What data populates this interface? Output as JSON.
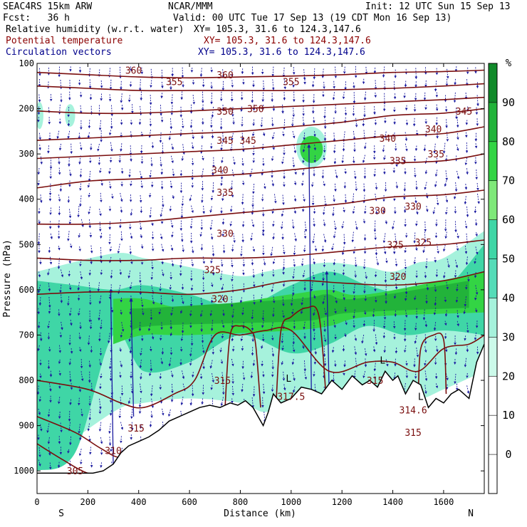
{
  "header": {
    "model": "SEAC4RS 15km ARW",
    "org": "NCAR/MMM",
    "init": "Init: 12 UTC Sun 15 Sep 13",
    "fcst": "Fcst:   36 h",
    "valid": "Valid: 00 UTC Tue 17 Sep 13 (19 CDT Mon 16 Sep 13)",
    "fields": [
      {
        "name": "Relative humidity (w.r.t. water)",
        "xy": "XY= 105.3, 31.6 to 124.3,147.6"
      },
      {
        "name": "Potential temperature",
        "xy": "XY= 105.3, 31.6 to 124.3,147.6"
      },
      {
        "name": "Circulation vectors",
        "xy": "XY= 105.3, 31.6 to 124.3,147.6"
      }
    ]
  },
  "chart_data": {
    "type": "cross-section",
    "xlabel": "Distance (km)",
    "ylabel": "Pressure (hPa)",
    "xlim": [
      0,
      1760
    ],
    "ylim": [
      1050,
      100
    ],
    "x_ticks": [
      0,
      200,
      400,
      600,
      800,
      1000,
      1200,
      1400,
      1600
    ],
    "y_ticks": [
      100,
      200,
      300,
      400,
      500,
      600,
      700,
      800,
      900,
      1000
    ],
    "end_labels": {
      "left": "S",
      "right": "N"
    },
    "colorbar": {
      "unit": "%",
      "levels": [
        0,
        10,
        20,
        30,
        40,
        50,
        60,
        70,
        80,
        90
      ],
      "colors": [
        "#ffffff",
        "#ffffff",
        "#ffffff",
        "#ccfaea",
        "#a6f2dc",
        "#55dcb8",
        "#3fd6a6",
        "#7fe879",
        "#33d444",
        "#22b33a",
        "#118a2a"
      ]
    },
    "humidity_regions": [
      {
        "level": 35,
        "x": [
          0,
          300,
          420,
          600,
          800,
          900,
          1000,
          1150,
          1300,
          1400,
          1500,
          1600,
          1760
        ],
        "p": [
          [
            990,
            560
          ],
          [
            870,
            520
          ],
          [
            850,
            530
          ],
          [
            840,
            550
          ],
          [
            850,
            570
          ],
          [
            870,
            560
          ],
          [
            840,
            550
          ],
          [
            830,
            540
          ],
          [
            820,
            550
          ],
          [
            810,
            560
          ],
          [
            840,
            540
          ],
          [
            820,
            530
          ],
          [
            780,
            470
          ]
        ]
      },
      {
        "level": 55,
        "x": [
          0,
          150,
          300,
          420,
          600,
          800,
          1000,
          1150,
          1300,
          1450,
          1600,
          1760
        ],
        "p": [
          [
            1000,
            580
          ],
          [
            960,
            590
          ],
          [
            700,
            600
          ],
          [
            780,
            590
          ],
          [
            760,
            610
          ],
          [
            700,
            640
          ],
          [
            740,
            590
          ],
          [
            720,
            560
          ],
          [
            680,
            590
          ],
          [
            700,
            610
          ],
          [
            690,
            600
          ],
          [
            700,
            500
          ]
        ]
      },
      {
        "level": 75,
        "x": [
          300,
          420,
          600,
          1000,
          1150,
          1300,
          1760
        ],
        "p": [
          [
            720,
            620
          ],
          [
            700,
            620
          ],
          [
            700,
            640
          ],
          [
            690,
            610
          ],
          [
            680,
            600
          ],
          [
            660,
            610
          ],
          [
            650,
            560
          ]
        ]
      },
      {
        "level": 85,
        "x": [
          370,
          450,
          1020,
          1140,
          1250,
          1700
        ],
        "p": [
          [
            700,
            640
          ],
          [
            680,
            640
          ],
          [
            670,
            620
          ],
          [
            660,
            610
          ],
          [
            650,
            620
          ],
          [
            640,
            580
          ]
        ]
      }
    ],
    "humidity_patches": [
      {
        "level": 35,
        "x": 1080,
        "p": 285,
        "dx": 60,
        "dp": 45
      },
      {
        "level": 75,
        "x": 1080,
        "p": 290,
        "dx": 45,
        "dp": 30
      },
      {
        "level": 35,
        "x": 10,
        "p": 215,
        "dx": 15,
        "dp": 30
      },
      {
        "level": 35,
        "x": 130,
        "p": 215,
        "dx": 20,
        "dp": 25
      }
    ],
    "theta_contours": [
      {
        "value": 305,
        "x": [
          0,
          100,
          200,
          260
        ],
        "p": [
          940,
          975,
          1005,
          1000
        ]
      },
      {
        "value": 310,
        "x": [
          0,
          150,
          250,
          330,
          400
        ],
        "p": [
          880,
          915,
          950,
          970,
          940
        ]
      },
      {
        "value": 315,
        "x": [
          0,
          200,
          330,
          420,
          540,
          620,
          700,
          800,
          900,
          1000,
          1150,
          1300,
          1400,
          1500,
          1600,
          1700,
          1760
        ],
        "p": [
          800,
          820,
          850,
          860,
          830,
          800,
          700,
          700,
          690,
          690,
          780,
          760,
          760,
          780,
          730,
          720,
          700
        ]
      },
      {
        "value": 320,
        "x": [
          0,
          200,
          400,
          600,
          800,
          1000,
          1200,
          1400,
          1600,
          1760
        ],
        "p": [
          610,
          605,
          605,
          610,
          600,
          580,
          585,
          590,
          580,
          560
        ]
      },
      {
        "value": 325,
        "x": [
          0,
          200,
          400,
          600,
          800,
          1000,
          1200,
          1400,
          1600,
          1760
        ],
        "p": [
          530,
          535,
          535,
          530,
          530,
          525,
          515,
          505,
          500,
          490
        ]
      },
      {
        "value": 330,
        "x": [
          0,
          200,
          400,
          600,
          800,
          1000,
          1200,
          1400,
          1600,
          1760
        ],
        "p": [
          455,
          455,
          450,
          440,
          430,
          420,
          410,
          395,
          390,
          380
        ]
      },
      {
        "value": 335,
        "x": [
          0,
          200,
          400,
          600,
          800,
          1000,
          1200,
          1400,
          1600,
          1760
        ],
        "p": [
          375,
          360,
          355,
          350,
          345,
          335,
          325,
          320,
          315,
          300
        ]
      },
      {
        "value": 340,
        "x": [
          0,
          200,
          400,
          600,
          800,
          1000,
          1200,
          1400,
          1600,
          1760
        ],
        "p": [
          310,
          305,
          300,
          295,
          290,
          280,
          270,
          260,
          255,
          240
        ]
      },
      {
        "value": 345,
        "x": [
          0,
          200,
          400,
          600,
          800,
          1000,
          1200,
          1400,
          1600,
          1760
        ],
        "p": [
          270,
          265,
          260,
          255,
          250,
          240,
          230,
          215,
          210,
          200
        ]
      },
      {
        "value": 350,
        "x": [
          0,
          200,
          400,
          600,
          800,
          1000,
          1200,
          1400,
          1600,
          1760
        ],
        "p": [
          205,
          210,
          210,
          205,
          200,
          195,
          190,
          185,
          180,
          175
        ]
      },
      {
        "value": 355,
        "x": [
          0,
          200,
          400,
          600,
          800,
          1000,
          1200,
          1400,
          1600,
          1760
        ],
        "p": [
          150,
          155,
          160,
          160,
          160,
          160,
          158,
          155,
          150,
          145
        ]
      },
      {
        "value": 360,
        "x": [
          0,
          200,
          400,
          600,
          800,
          1000,
          1200,
          1400,
          1600,
          1760
        ],
        "p": [
          120,
          125,
          130,
          132,
          130,
          128,
          125,
          120,
          118,
          115
        ]
      }
    ],
    "closed_contours": [
      {
        "x": [
          740,
          760,
          800,
          840,
          860,
          880
        ],
        "p": [
          860,
          700,
          680,
          690,
          720,
          860
        ]
      },
      {
        "x": [
          940,
          960,
          1000,
          1060,
          1110,
          1140
        ],
        "p": [
          860,
          690,
          660,
          640,
          660,
          860
        ]
      },
      {
        "x": [
          1500,
          1510,
          1560,
          1600,
          1610
        ],
        "p": [
          860,
          730,
          700,
          710,
          830
        ]
      }
    ],
    "theta_labels": [
      {
        "text": "360",
        "x": 380,
        "p": 115
      },
      {
        "text": "355",
        "x": 540,
        "p": 140
      },
      {
        "text": "360",
        "x": 740,
        "p": 125
      },
      {
        "text": "355",
        "x": 1000,
        "p": 140
      },
      {
        "text": "350",
        "x": 740,
        "p": 205
      },
      {
        "text": "350",
        "x": 860,
        "p": 200
      },
      {
        "text": "345",
        "x": 1680,
        "p": 205
      },
      {
        "text": "345",
        "x": 740,
        "p": 270
      },
      {
        "text": "345",
        "x": 830,
        "p": 270
      },
      {
        "text": "340",
        "x": 1380,
        "p": 265
      },
      {
        "text": "340",
        "x": 1560,
        "p": 245
      },
      {
        "text": "340",
        "x": 720,
        "p": 335
      },
      {
        "text": "335",
        "x": 1420,
        "p": 315
      },
      {
        "text": "335",
        "x": 1570,
        "p": 300
      },
      {
        "text": "335",
        "x": 740,
        "p": 385
      },
      {
        "text": "330",
        "x": 1340,
        "p": 425
      },
      {
        "text": "330",
        "x": 1480,
        "p": 415
      },
      {
        "text": "330",
        "x": 740,
        "p": 475
      },
      {
        "text": "325",
        "x": 1410,
        "p": 500
      },
      {
        "text": "325",
        "x": 1520,
        "p": 495
      },
      {
        "text": "325",
        "x": 690,
        "p": 555
      },
      {
        "text": "320",
        "x": 1420,
        "p": 570
      },
      {
        "text": "320",
        "x": 720,
        "p": 620
      },
      {
        "text": "315",
        "x": 730,
        "p": 800
      },
      {
        "text": "317.5",
        "x": 1000,
        "p": 835
      },
      {
        "text": "315",
        "x": 1330,
        "p": 800
      },
      {
        "text": "314.6",
        "x": 1480,
        "p": 865
      },
      {
        "text": "315",
        "x": 1480,
        "p": 915
      },
      {
        "text": "315",
        "x": 390,
        "p": 905
      },
      {
        "text": "310",
        "x": 300,
        "p": 955
      },
      {
        "text": "305",
        "x": 150,
        "p": 1000
      }
    ],
    "low_markers": [
      {
        "text": "L",
        "x": 990,
        "p": 795
      },
      {
        "text": "L",
        "x": 1360,
        "p": 755
      },
      {
        "text": "L",
        "x": 1510,
        "p": 835
      }
    ],
    "terrain": {
      "x": [
        0,
        220,
        260,
        300,
        330,
        360,
        400,
        440,
        480,
        520,
        560,
        600,
        640,
        680,
        720,
        760,
        790,
        820,
        850,
        870,
        890,
        910,
        930,
        960,
        1000,
        1040,
        1080,
        1120,
        1160,
        1200,
        1240,
        1280,
        1310,
        1340,
        1370,
        1400,
        1420,
        1450,
        1480,
        1510,
        1540,
        1570,
        1600,
        1630,
        1660,
        1700,
        1730,
        1760
      ],
      "p": [
        1005,
        1005,
        1000,
        985,
        960,
        945,
        935,
        925,
        910,
        890,
        880,
        870,
        860,
        855,
        860,
        850,
        855,
        845,
        860,
        880,
        900,
        870,
        830,
        850,
        840,
        815,
        820,
        830,
        800,
        820,
        790,
        810,
        800,
        815,
        780,
        800,
        790,
        830,
        800,
        810,
        860,
        840,
        850,
        830,
        820,
        840,
        760,
        720
      ]
    },
    "vectors": {
      "note": "dense field of circulation arrows above terrain"
    }
  }
}
